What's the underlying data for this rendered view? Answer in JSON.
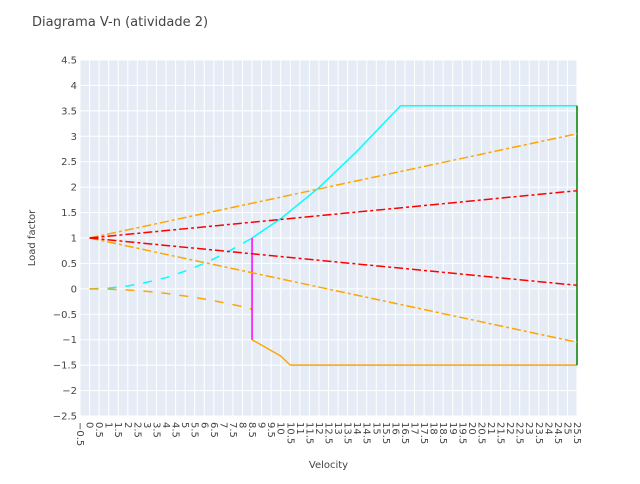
{
  "chart_data": {
    "type": "line",
    "title": "Diagrama V-n (atividade 2)",
    "xlabel": "Velocity",
    "ylabel": "Load factor",
    "xlim": [
      -0.5,
      25.5
    ],
    "ylim": [
      -2.5,
      4.5
    ],
    "grid": true,
    "x_ticks": [
      "−0.5",
      "0",
      "0.5",
      "1",
      "1.5",
      "2",
      "2.5",
      "3",
      "3.5",
      "4",
      "4.5",
      "5",
      "5.5",
      "6",
      "6.5",
      "7",
      "7.5",
      "8",
      "8.5",
      "9",
      "9.5",
      "10",
      "10.5",
      "11",
      "11.5",
      "12",
      "12.5",
      "13",
      "13.5",
      "14",
      "14.5",
      "15",
      "15.5",
      "16",
      "16.5",
      "17",
      "17.5",
      "18",
      "18.5",
      "19",
      "19.5",
      "20",
      "20.5",
      "21",
      "21.5",
      "22",
      "22.5",
      "23",
      "23.5",
      "24",
      "24.5",
      "25",
      "25.5"
    ],
    "y_ticks": [
      "4.5",
      "4",
      "3.5",
      "3",
      "2.5",
      "2",
      "1.5",
      "1",
      "0.5",
      "0",
      "−0.5",
      "−1",
      "−1.5",
      "−2",
      "−2.5"
    ],
    "series": [
      {
        "color": "#00ffff",
        "dash": "dash",
        "x": [
          0,
          1,
          2,
          3,
          4,
          5,
          6,
          7,
          8,
          8.5
        ],
        "y": [
          0,
          0.014,
          0.056,
          0.13,
          0.22,
          0.35,
          0.5,
          0.68,
          0.89,
          1.0
        ]
      },
      {
        "color": "#00ffff",
        "dash": "solid",
        "x": [
          8.5,
          10,
          12,
          14,
          16.27
        ],
        "y": [
          1.0,
          1.38,
          1.99,
          2.71,
          3.6
        ]
      },
      {
        "color": "#00ffff",
        "dash": "solid",
        "x": [
          16.27,
          25.5
        ],
        "y": [
          3.6,
          3.6
        ]
      },
      {
        "color": "#ffa500",
        "dash": "dash",
        "x": [
          0,
          1,
          2,
          3,
          4,
          5,
          6,
          7,
          8,
          8.5
        ],
        "y": [
          0,
          -0.006,
          -0.022,
          -0.05,
          -0.09,
          -0.14,
          -0.2,
          -0.27,
          -0.35,
          -0.4
        ]
      },
      {
        "color": "#ffa500",
        "dash": "solid",
        "x": [
          8.5,
          10,
          10.5
        ],
        "y": [
          -1.0,
          -1.32,
          -1.5
        ]
      },
      {
        "color": "#ffa500",
        "dash": "solid",
        "x": [
          10.5,
          25.5
        ],
        "y": [
          -1.5,
          -1.5
        ]
      },
      {
        "color": "#ff00ff",
        "dash": "solid",
        "x": [
          8.5,
          8.5
        ],
        "y": [
          1.0,
          -1.0
        ]
      },
      {
        "color": "#008000",
        "dash": "solid",
        "x": [
          25.5,
          25.5
        ],
        "y": [
          3.6,
          -1.5
        ]
      },
      {
        "color": "#ffa500",
        "dash": "dashdot",
        "x": [
          0,
          25.5
        ],
        "y": [
          1.0,
          3.05
        ]
      },
      {
        "color": "#ffa500",
        "dash": "dashdot",
        "x": [
          0,
          25.5
        ],
        "y": [
          1.0,
          -1.05
        ]
      },
      {
        "color": "#ff0000",
        "dash": "dashdot",
        "x": [
          0,
          25.5
        ],
        "y": [
          1.0,
          1.93
        ]
      },
      {
        "color": "#ff0000",
        "dash": "dashdot",
        "x": [
          0,
          25.5
        ],
        "y": [
          1.0,
          0.07
        ]
      }
    ]
  }
}
